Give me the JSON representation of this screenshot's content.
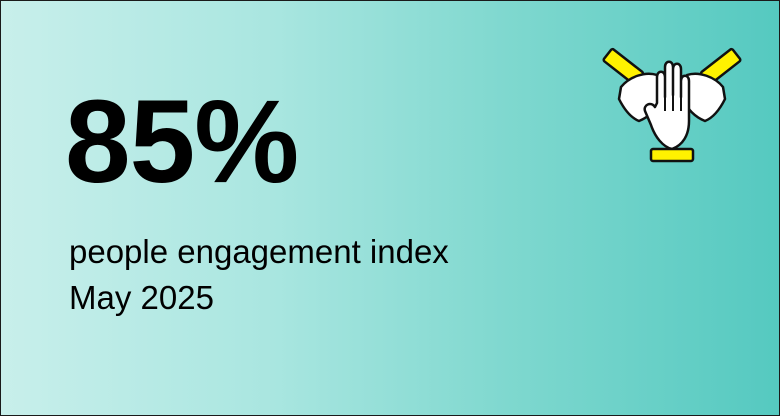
{
  "stat": {
    "value": "85%",
    "label": "people engagement index",
    "period": "May 2025"
  },
  "icon": {
    "name": "hands-together-icon"
  },
  "colors": {
    "gradient_start": "#c8efeb",
    "gradient_end": "#55c9c0",
    "text": "#000000",
    "icon_accent": "#fff200"
  }
}
